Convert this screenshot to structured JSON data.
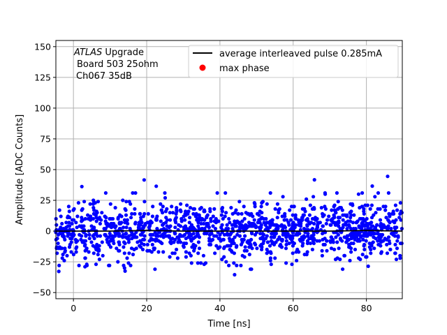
{
  "chart_data": {
    "type": "scatter",
    "title": "",
    "xlabel": "Time [ns]",
    "ylabel": "Amplitude [ADC Counts]",
    "xlim": [
      -4.8,
      89.8
    ],
    "ylim": [
      -55,
      155
    ],
    "xticks": [
      0,
      20,
      40,
      60,
      80
    ],
    "xtick_labels": [
      "0",
      "20",
      "40",
      "60",
      "80"
    ],
    "yticks": [
      -50,
      -25,
      0,
      25,
      50,
      75,
      100,
      125,
      150
    ],
    "ytick_labels": [
      "−50",
      "−25",
      "0",
      "25",
      "50",
      "75",
      "100",
      "125",
      "150"
    ],
    "grid": true,
    "annotation": {
      "line1_italic": "ATLAS",
      "line1_rest": " Upgrade",
      "line2": "Board 503 25ohm",
      "line3": "Ch067 35dB"
    },
    "legend": {
      "position": "top-right",
      "entries": [
        {
          "label": "average interleaved pulse 0.285mA",
          "marker": "line",
          "color": "#000000"
        },
        {
          "label": "max phase",
          "marker": "circle",
          "color": "#ff0000"
        }
      ]
    },
    "series": [
      {
        "name": "average interleaved pulse 0.285mA",
        "kind": "line",
        "color": "#000000",
        "x": [
          -4.8,
          0,
          10,
          20,
          30,
          40,
          50,
          60,
          70,
          80,
          89.8
        ],
        "y": [
          0,
          0,
          0,
          0.5,
          0,
          0,
          0,
          0,
          0,
          0.5,
          0
        ]
      },
      {
        "name": "samples",
        "kind": "points",
        "color": "#0000ff",
        "range_x": [
          -4.8,
          89.8
        ],
        "range_y": [
          -37,
          44
        ],
        "count": 1400,
        "sigma": 11.5,
        "outliers": [
          [
            19.3,
            41.6
          ],
          [
            22.6,
            36.5
          ],
          [
            2.3,
            36.2
          ],
          [
            44.0,
            -35.5
          ],
          [
            85.8,
            44.5
          ],
          [
            65.8,
            41.7
          ],
          [
            81.6,
            36.6
          ],
          [
            -4.0,
            -32.8
          ],
          [
            14.1,
            -32.5
          ],
          [
            80.5,
            -28.6
          ]
        ]
      },
      {
        "name": "max phase",
        "kind": "points",
        "color": "#ff0000",
        "x": [],
        "y": []
      }
    ]
  }
}
